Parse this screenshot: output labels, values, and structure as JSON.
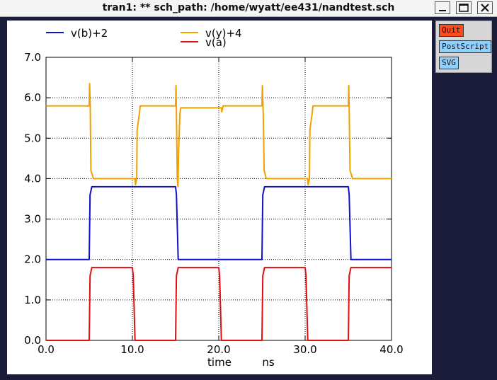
{
  "window": {
    "title": "tran1: ** sch_path: /home/wyatt/ee431/nandtest.sch",
    "buttons": [
      "minimize-icon",
      "maximize-icon",
      "close-icon"
    ]
  },
  "sidebar": {
    "buttons": [
      {
        "label": "Quit",
        "color": "#ff4a1a"
      },
      {
        "label": "PostScript",
        "color": "#8fd0ff"
      },
      {
        "label": "SVG",
        "color": "#8fd0ff"
      }
    ]
  },
  "chart_data": {
    "type": "line",
    "xlabel": "time",
    "xunit": "ns",
    "xlim": [
      0,
      40
    ],
    "ylim": [
      0,
      7
    ],
    "xticks": [
      "0.0",
      "10.0",
      "20.0",
      "30.0",
      "40.0"
    ],
    "yticks": [
      "0.0",
      "1.0",
      "2.0",
      "3.0",
      "4.0",
      "5.0",
      "6.0",
      "7.0"
    ],
    "grid": true,
    "legend_position": "top",
    "series": [
      {
        "name": "v(b)+2",
        "color": "#1010c8",
        "points": [
          [
            0,
            2.0
          ],
          [
            5.0,
            2.0
          ],
          [
            5.1,
            3.6
          ],
          [
            5.3,
            3.8
          ],
          [
            15.0,
            3.8
          ],
          [
            15.1,
            3.6
          ],
          [
            15.3,
            2.0
          ],
          [
            25.0,
            2.0
          ],
          [
            25.1,
            3.6
          ],
          [
            25.3,
            3.8
          ],
          [
            35.0,
            3.8
          ],
          [
            35.1,
            3.6
          ],
          [
            35.3,
            2.0
          ],
          [
            40,
            2.0
          ]
        ]
      },
      {
        "name": "v(y)+4",
        "color": "#f0a000",
        "points": [
          [
            0,
            5.8
          ],
          [
            5.0,
            5.8
          ],
          [
            5.05,
            6.35
          ],
          [
            5.12,
            5.75
          ],
          [
            5.2,
            4.2
          ],
          [
            5.5,
            4.0
          ],
          [
            10.3,
            4.0
          ],
          [
            10.35,
            3.85
          ],
          [
            10.5,
            4.0
          ],
          [
            10.55,
            5.2
          ],
          [
            10.8,
            5.6
          ],
          [
            10.9,
            5.8
          ],
          [
            15.0,
            5.8
          ],
          [
            15.05,
            6.3
          ],
          [
            15.1,
            5.6
          ],
          [
            15.2,
            4.0
          ],
          [
            15.28,
            3.8
          ],
          [
            15.35,
            4.7
          ],
          [
            15.5,
            5.6
          ],
          [
            15.6,
            5.75
          ],
          [
            20.3,
            5.75
          ],
          [
            20.35,
            5.65
          ],
          [
            20.5,
            5.8
          ],
          [
            25.0,
            5.8
          ],
          [
            25.05,
            6.3
          ],
          [
            25.15,
            5.6
          ],
          [
            25.25,
            4.2
          ],
          [
            25.5,
            4.0
          ],
          [
            30.3,
            4.0
          ],
          [
            30.35,
            3.85
          ],
          [
            30.5,
            4.0
          ],
          [
            30.55,
            5.2
          ],
          [
            30.8,
            5.6
          ],
          [
            30.9,
            5.8
          ],
          [
            35.0,
            5.8
          ],
          [
            35.05,
            6.3
          ],
          [
            35.1,
            5.75
          ],
          [
            35.2,
            4.2
          ],
          [
            35.5,
            4.0
          ],
          [
            40,
            4.0
          ]
        ]
      },
      {
        "name": "v(a)",
        "color": "#e01010",
        "points": [
          [
            0,
            0
          ],
          [
            5.0,
            0
          ],
          [
            5.1,
            1.6
          ],
          [
            5.3,
            1.8
          ],
          [
            10.0,
            1.8
          ],
          [
            10.1,
            1.6
          ],
          [
            10.3,
            0
          ],
          [
            15.0,
            0
          ],
          [
            15.1,
            1.6
          ],
          [
            15.3,
            1.8
          ],
          [
            20.0,
            1.8
          ],
          [
            20.1,
            1.6
          ],
          [
            20.3,
            0
          ],
          [
            25.0,
            0
          ],
          [
            25.1,
            1.6
          ],
          [
            25.3,
            1.8
          ],
          [
            30.0,
            1.8
          ],
          [
            30.1,
            1.6
          ],
          [
            30.3,
            0
          ],
          [
            35.0,
            0
          ],
          [
            35.1,
            1.6
          ],
          [
            35.3,
            1.8
          ],
          [
            40,
            1.8
          ]
        ]
      }
    ]
  }
}
